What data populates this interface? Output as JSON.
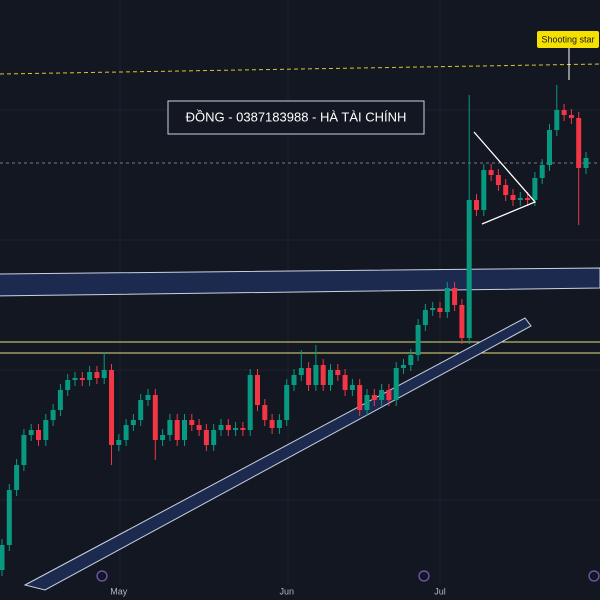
{
  "chart_data": {
    "type": "candlestick",
    "categories": [
      null,
      null,
      null,
      null,
      null,
      null,
      null,
      null,
      null,
      null,
      null,
      null,
      null,
      null,
      null,
      null,
      "May",
      null,
      null,
      null,
      null,
      null,
      null,
      null,
      null,
      null,
      null,
      null,
      null,
      null,
      null,
      null,
      null,
      null,
      null,
      null,
      null,
      null,
      null,
      "Jun",
      null,
      null,
      null,
      null,
      null,
      null,
      null,
      null,
      null,
      null,
      null,
      null,
      null,
      null,
      null,
      null,
      null,
      null,
      null,
      null,
      "Jul",
      null,
      null,
      null,
      null,
      null,
      null,
      null,
      null,
      null,
      null,
      null,
      null,
      null,
      null,
      null,
      null,
      null,
      null,
      null,
      null
    ],
    "open": [
      30,
      55,
      110,
      135,
      165,
      170,
      160,
      180,
      190,
      210,
      220,
      222,
      220,
      228,
      222,
      230,
      155,
      160,
      175,
      180,
      200,
      205,
      160,
      165,
      180,
      160,
      180,
      175,
      170,
      155,
      170,
      175,
      170,
      172,
      170,
      225,
      195,
      180,
      172,
      180,
      215,
      225,
      232,
      215,
      235,
      215,
      230,
      225,
      210,
      215,
      190,
      205,
      200,
      210,
      200,
      232,
      235,
      245,
      275,
      290,
      292,
      288,
      312,
      295,
      262,
      400,
      390,
      430,
      425,
      415,
      405,
      400,
      402,
      400,
      422,
      435,
      470,
      490,
      485,
      482,
      432
    ],
    "high": [
      61,
      116,
      141,
      171,
      176,
      176,
      186,
      196,
      216,
      226,
      228,
      228,
      234,
      234,
      248,
      236,
      166,
      181,
      186,
      206,
      211,
      211,
      171,
      186,
      186,
      186,
      186,
      181,
      176,
      176,
      181,
      181,
      178,
      178,
      231,
      231,
      201,
      186,
      186,
      221,
      231,
      250,
      238,
      255,
      241,
      236,
      236,
      231,
      221,
      221,
      211,
      211,
      216,
      216,
      238,
      241,
      251,
      281,
      296,
      298,
      298,
      318,
      318,
      301,
      505,
      406,
      436,
      436,
      431,
      421,
      411,
      408,
      408,
      428,
      441,
      476,
      515,
      496,
      491,
      488,
      448
    ],
    "low": [
      24,
      49,
      104,
      129,
      159,
      154,
      154,
      174,
      184,
      204,
      214,
      214,
      214,
      216,
      216,
      135,
      149,
      154,
      169,
      174,
      194,
      140,
      154,
      159,
      154,
      154,
      169,
      164,
      149,
      149,
      164,
      164,
      164,
      164,
      164,
      189,
      174,
      166,
      166,
      174,
      209,
      219,
      209,
      209,
      209,
      209,
      219,
      204,
      204,
      184,
      184,
      194,
      194,
      194,
      194,
      226,
      229,
      239,
      269,
      284,
      282,
      282,
      289,
      256,
      256,
      384,
      384,
      419,
      409,
      399,
      394,
      394,
      394,
      394,
      416,
      429,
      464,
      479,
      476,
      375,
      426
    ],
    "close": [
      55,
      110,
      135,
      165,
      170,
      160,
      180,
      190,
      210,
      220,
      222,
      220,
      228,
      222,
      230,
      155,
      160,
      175,
      180,
      200,
      205,
      160,
      165,
      180,
      160,
      180,
      175,
      170,
      155,
      170,
      175,
      170,
      172,
      170,
      225,
      195,
      180,
      172,
      180,
      215,
      225,
      232,
      215,
      235,
      215,
      230,
      225,
      210,
      215,
      190,
      205,
      200,
      210,
      200,
      232,
      235,
      245,
      275,
      290,
      292,
      288,
      312,
      295,
      262,
      400,
      390,
      430,
      425,
      415,
      405,
      400,
      402,
      400,
      422,
      435,
      470,
      490,
      485,
      482,
      432,
      442
    ],
    "up_color": "#089981",
    "down_color": "#f23645",
    "ylim": [
      0,
      600
    ],
    "annotations": {
      "banner": "ĐỒNG - 0387183988 - HÀ TÀI CHÍNH",
      "shooting_star": "Shooting star"
    }
  }
}
